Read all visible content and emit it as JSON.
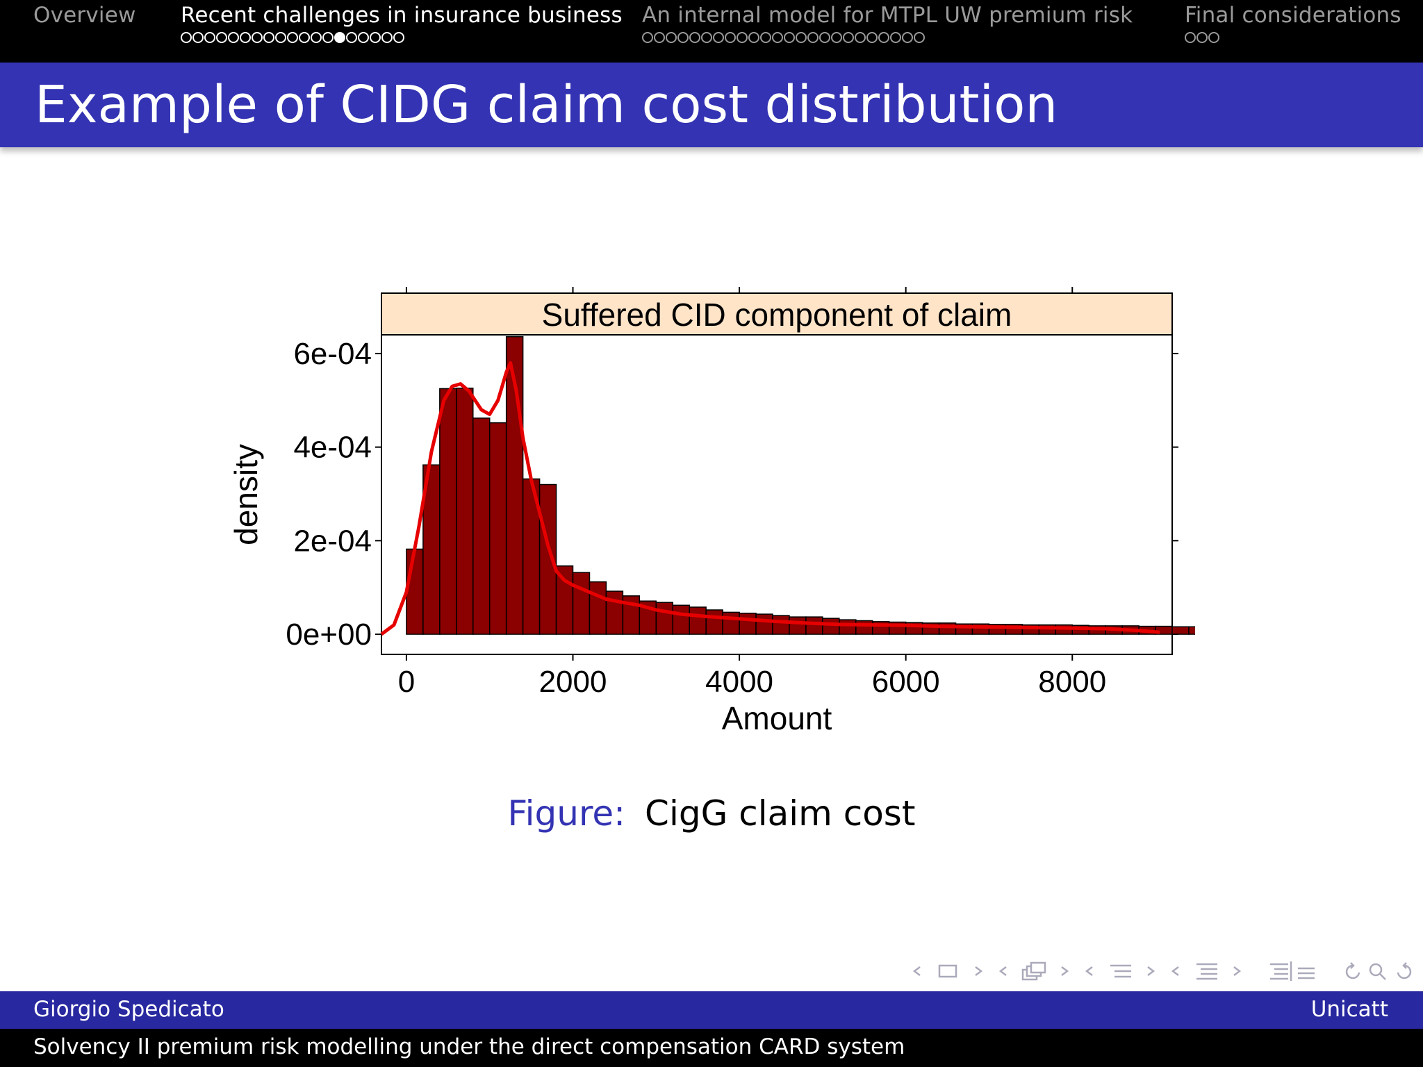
{
  "nav": {
    "sections": [
      {
        "title": "Overview",
        "dots": 0,
        "current": -1,
        "active": false
      },
      {
        "title": "Recent challenges in insurance business",
        "dots": 19,
        "current": 13,
        "active": true
      },
      {
        "title": "An internal model for MTPL UW premium risk",
        "dots": 24,
        "current": -1,
        "active": false
      },
      {
        "title": "Final considerations",
        "dots": 3,
        "current": -1,
        "active": false
      }
    ]
  },
  "slide": {
    "title": "Example of CIDG claim cost distribution",
    "caption_label": "Figure:",
    "caption_text": "CigG claim cost"
  },
  "chart_data": {
    "type": "histogram",
    "strip_title": "Suffered CID component of claim",
    "xlabel": "Amount",
    "ylabel": "density",
    "xlim": [
      -300,
      9200
    ],
    "ylim": [
      -4.3e-05,
      0.00064
    ],
    "x_ticks": [
      0,
      2000,
      4000,
      6000,
      8000
    ],
    "x_tick_labels": [
      "0",
      "2000",
      "4000",
      "6000",
      "8000"
    ],
    "y_ticks": [
      0,
      0.0002,
      0.0004,
      0.0006
    ],
    "y_tick_labels": [
      "0e+00",
      "2e-04",
      "4e-04",
      "6e-04"
    ],
    "bin_width": 200,
    "bin_start": 0,
    "bar_values": [
      0.000182,
      0.000362,
      0.000525,
      0.000526,
      0.000462,
      0.000452,
      0.000636,
      0.000332,
      0.00032,
      0.000146,
      0.000132,
      0.000112,
      9.2e-05,
      8.2e-05,
      7.1e-05,
      6.8e-05,
      6.2e-05,
      5.8e-05,
      5.2e-05,
      4.7e-05,
      4.5e-05,
      4.3e-05,
      4e-05,
      3.7e-05,
      3.7e-05,
      3.4e-05,
      3.1e-05,
      2.9e-05,
      2.7e-05,
      2.6e-05,
      2.5e-05,
      2.4e-05,
      2.4e-05,
      2.2e-05,
      2.2e-05,
      2.1e-05,
      2.1e-05,
      2e-05,
      2e-05,
      2e-05,
      1.9e-05,
      1.8e-05,
      1.8e-05,
      1.8e-05,
      1.7e-05,
      1.7e-05,
      1.6e-05,
      1.6e-05,
      1.6e-05,
      1.5e-05,
      1.5e-05,
      1.5e-05,
      1.4e-05,
      1.4e-05,
      1.4e-05,
      1.3e-05,
      1.3e-05,
      1.3e-05,
      1.2e-05,
      1.2e-05,
      1.2e-05,
      1.1e-05,
      1.1e-05,
      1.1e-05,
      1e-05,
      1e-05,
      1e-05,
      9e-06,
      9e-06,
      9e-06,
      8e-06,
      8e-06,
      8e-06,
      7e-06,
      7e-06,
      7e-06,
      6e-06,
      6e-06,
      6e-06,
      5e-06,
      5e-06,
      5e-06,
      4e-06,
      4e-06
    ],
    "density_x": [
      -300,
      -150,
      0,
      150,
      300,
      450,
      550,
      650,
      750,
      900,
      1000,
      1100,
      1200,
      1250,
      1320,
      1400,
      1500,
      1600,
      1700,
      1800,
      1900,
      2000,
      2200,
      2400,
      2600,
      2800,
      3000,
      3300,
      3600,
      4000,
      4400,
      4800,
      5200,
      5600,
      6000,
      6400,
      6800,
      7200,
      7600,
      8000,
      8400,
      8800,
      9050
    ],
    "density_y": [
      0,
      2e-05,
      9e-05,
      0.00023,
      0.00039,
      0.0005,
      0.00053,
      0.000535,
      0.00052,
      0.00048,
      0.00047,
      0.0005,
      0.00056,
      0.00058,
      0.00052,
      0.00042,
      0.00033,
      0.00026,
      0.00019,
      0.000135,
      0.000115,
      0.000105,
      9e-05,
      7.5e-05,
      6.8e-05,
      6.2e-05,
      5.2e-05,
      4.3e-05,
      3.8e-05,
      3.3e-05,
      2.8e-05,
      2.4e-05,
      2.1e-05,
      2e-05,
      1.9e-05,
      1.7e-05,
      1.6e-05,
      1.5e-05,
      1.4e-05,
      1.3e-05,
      1.2e-05,
      8e-06,
      4e-06
    ],
    "colors": {
      "bars": "#8b0000",
      "density": "#e60000",
      "strip": "#ffe4c8"
    }
  },
  "toolbar": {
    "icons": [
      "frame-nav-icon",
      "subsection-nav-icon",
      "section-nav-icon",
      "presentation-nav-icon",
      "appendix-nav-icon",
      "search-zoom-icon"
    ]
  },
  "footer": {
    "author": "Giorgio Spedicato",
    "institute": "Unicatt",
    "talk_title": "Solvency II premium risk modelling under the direct compensation CARD system"
  }
}
